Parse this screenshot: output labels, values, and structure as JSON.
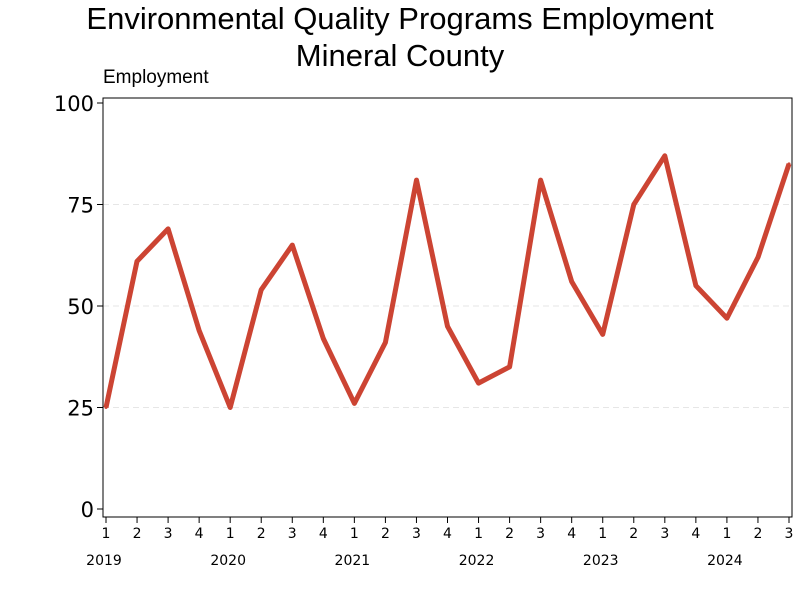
{
  "chart_data": {
    "type": "line",
    "title_lines": [
      "Environmental Quality Programs Employment",
      "Mineral County"
    ],
    "ylabel": "Employment",
    "xlabel": "",
    "ylim": [
      0,
      100
    ],
    "yticks": [
      0,
      25,
      50,
      75,
      100
    ],
    "grid": "horizontal dashed",
    "x": [
      {
        "year": "2019",
        "quarter": "1"
      },
      {
        "year": "2019",
        "quarter": "2"
      },
      {
        "year": "2019",
        "quarter": "3"
      },
      {
        "year": "2019",
        "quarter": "4"
      },
      {
        "year": "2020",
        "quarter": "1"
      },
      {
        "year": "2020",
        "quarter": "2"
      },
      {
        "year": "2020",
        "quarter": "3"
      },
      {
        "year": "2020",
        "quarter": "4"
      },
      {
        "year": "2021",
        "quarter": "1"
      },
      {
        "year": "2021",
        "quarter": "2"
      },
      {
        "year": "2021",
        "quarter": "3"
      },
      {
        "year": "2021",
        "quarter": "4"
      },
      {
        "year": "2022",
        "quarter": "1"
      },
      {
        "year": "2022",
        "quarter": "2"
      },
      {
        "year": "2022",
        "quarter": "3"
      },
      {
        "year": "2022",
        "quarter": "4"
      },
      {
        "year": "2023",
        "quarter": "1"
      },
      {
        "year": "2023",
        "quarter": "2"
      },
      {
        "year": "2023",
        "quarter": "3"
      },
      {
        "year": "2023",
        "quarter": "4"
      },
      {
        "year": "2024",
        "quarter": "1"
      },
      {
        "year": "2024",
        "quarter": "2"
      },
      {
        "year": "2024",
        "quarter": "3"
      }
    ],
    "years": [
      "2019",
      "2020",
      "2021",
      "2022",
      "2023",
      "2024"
    ],
    "series": [
      {
        "color": "#cc4433",
        "values": [
          25,
          61,
          69,
          44,
          25,
          54,
          65,
          42,
          26,
          41,
          81,
          45,
          31,
          35,
          81,
          56,
          43,
          75,
          87,
          55,
          47,
          62,
          85
        ]
      }
    ]
  }
}
